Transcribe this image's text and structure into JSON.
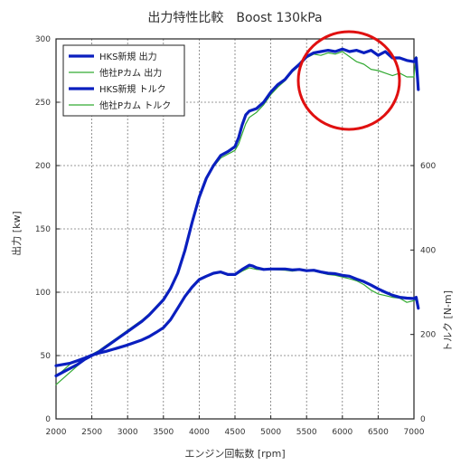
{
  "chart_data": {
    "type": "line",
    "title": "出力特性比較　Boost 130kPa",
    "xlabel": "エンジン回転数 [rpm]",
    "ylabel_left": "出力 [kw]",
    "ylabel_right": "トルク [N-m]",
    "xlim": [
      2000,
      7000
    ],
    "ylim_left": [
      0,
      300
    ],
    "ylim_right": [
      0,
      900
    ],
    "x_ticks": [
      "2000",
      "2500",
      "3000",
      "3500",
      "4000",
      "4500",
      "5000",
      "5500",
      "6000",
      "6500",
      "7000"
    ],
    "y_left_ticks": [
      "0",
      "50",
      "100",
      "150",
      "200",
      "250",
      "300"
    ],
    "y_right_ticks": [
      "0",
      "200",
      "400",
      "600"
    ],
    "grid": true,
    "legend_position": "top-left",
    "annotation": "red-circle-highlight",
    "colors": {
      "hks": "#0a1fbf",
      "other": "#33aa33",
      "circle": "#e01010"
    },
    "series": [
      {
        "name": "HKS新規 出力",
        "axis": "left",
        "color": "#0a1fbf",
        "x": [
          2000,
          2100,
          2200,
          2300,
          2400,
          2500,
          2600,
          2700,
          2800,
          2900,
          3000,
          3100,
          3200,
          3300,
          3400,
          3500,
          3600,
          3700,
          3800,
          3900,
          4000,
          4100,
          4200,
          4300,
          4400,
          4500,
          4550,
          4600,
          4650,
          4700,
          4750,
          4800,
          4900,
          5000,
          5100,
          5200,
          5300,
          5400,
          5500,
          5600,
          5700,
          5800,
          5900,
          6000,
          6100,
          6200,
          6300,
          6400,
          6500,
          6600,
          6700,
          6800,
          6900,
          7000,
          7030,
          7060
        ],
        "y": [
          34,
          37,
          40,
          43,
          47,
          50,
          53,
          57,
          61,
          65,
          69,
          73,
          77,
          82,
          88,
          94,
          103,
          115,
          133,
          155,
          175,
          190,
          200,
          208,
          211,
          215,
          222,
          232,
          240,
          243,
          244,
          245,
          250,
          258,
          264,
          268,
          275,
          280,
          286,
          289,
          290,
          291,
          290,
          292,
          290,
          291,
          289,
          291,
          287,
          290,
          285,
          285,
          283,
          282,
          285,
          260
        ]
      },
      {
        "name": "他社Pカム 出力",
        "axis": "left",
        "color": "#33aa33",
        "x": [
          2000,
          2100,
          2200,
          2300,
          2400,
          2500,
          2600,
          2700,
          2800,
          2900,
          3000,
          3100,
          3200,
          3300,
          3400,
          3500,
          3600,
          3700,
          3800,
          3900,
          4000,
          4100,
          4200,
          4300,
          4400,
          4500,
          4550,
          4600,
          4650,
          4700,
          4750,
          4800,
          4900,
          5000,
          5100,
          5200,
          5300,
          5400,
          5500,
          5600,
          5700,
          5800,
          5900,
          6000,
          6100,
          6200,
          6300,
          6400,
          6500,
          6600,
          6700,
          6800,
          6900,
          7000,
          7030
        ],
        "y": [
          27,
          32,
          37,
          42,
          47,
          51,
          54,
          58,
          62,
          66,
          70,
          74,
          78,
          83,
          89,
          95,
          104,
          116,
          135,
          157,
          176,
          190,
          199,
          206,
          209,
          212,
          217,
          225,
          233,
          238,
          240,
          242,
          248,
          256,
          262,
          267,
          274,
          279,
          285,
          288,
          287,
          289,
          288,
          290,
          286,
          282,
          280,
          276,
          275,
          273,
          271,
          273,
          270,
          270,
          286
        ]
      },
      {
        "name": "HKS新規 トルク",
        "axis": "right",
        "color": "#0a1fbf",
        "x": [
          2000,
          2100,
          2200,
          2300,
          2400,
          2500,
          2600,
          2700,
          2800,
          2900,
          3000,
          3100,
          3200,
          3300,
          3400,
          3500,
          3600,
          3700,
          3800,
          3900,
          4000,
          4100,
          4200,
          4300,
          4400,
          4500,
          4600,
          4700,
          4750,
          4800,
          4900,
          5000,
          5100,
          5200,
          5300,
          5400,
          5500,
          5600,
          5700,
          5800,
          5900,
          6000,
          6100,
          6200,
          6300,
          6400,
          6500,
          6600,
          6700,
          6800,
          6900,
          7000,
          7030,
          7060
        ],
        "y": [
          126,
          129,
          132,
          138,
          144,
          151,
          156,
          160,
          165,
          170,
          175,
          181,
          187,
          195,
          205,
          216,
          235,
          262,
          290,
          312,
          330,
          338,
          345,
          348,
          342,
          342,
          354,
          364,
          362,
          358,
          354,
          355,
          355,
          355,
          353,
          354,
          351,
          352,
          348,
          345,
          344,
          340,
          338,
          331,
          325,
          317,
          308,
          300,
          293,
          288,
          286,
          285,
          288,
          262
        ]
      },
      {
        "name": "他社Pカム トルク",
        "axis": "right",
        "color": "#33aa33",
        "x": [
          2000,
          2100,
          2200,
          2300,
          2400,
          2500,
          2600,
          2700,
          2800,
          2900,
          3000,
          3100,
          3200,
          3300,
          3400,
          3500,
          3600,
          3700,
          3800,
          3900,
          4000,
          4100,
          4200,
          4300,
          4400,
          4500,
          4600,
          4700,
          4750,
          4800,
          4900,
          5000,
          5100,
          5200,
          5300,
          5400,
          5500,
          5600,
          5700,
          5800,
          5900,
          6000,
          6100,
          6200,
          6300,
          6400,
          6500,
          6600,
          6700,
          6800,
          6900,
          7000,
          7030
        ],
        "y": [
          100,
          115,
          130,
          138,
          144,
          149,
          155,
          160,
          165,
          170,
          175,
          181,
          187,
          195,
          205,
          216,
          236,
          264,
          292,
          313,
          330,
          338,
          344,
          346,
          340,
          340,
          350,
          358,
          356,
          354,
          353,
          354,
          353,
          352,
          350,
          352,
          350,
          350,
          346,
          342,
          340,
          336,
          332,
          327,
          318,
          305,
          296,
          292,
          288,
          286,
          276,
          280,
          283
        ]
      }
    ]
  }
}
